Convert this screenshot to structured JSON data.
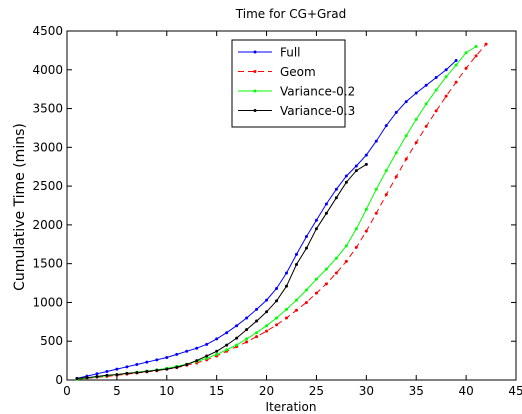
{
  "chart_data": {
    "type": "line",
    "title": "Time for CG+Grad",
    "xlabel": "Iteration",
    "ylabel": "Cumulative Time (mins)",
    "xlim": [
      0,
      45
    ],
    "ylim": [
      0,
      4500
    ],
    "xticks": [
      0,
      5,
      10,
      15,
      20,
      25,
      30,
      35,
      40,
      45
    ],
    "yticks": [
      0,
      500,
      1000,
      1500,
      2000,
      2500,
      3000,
      3500,
      4000,
      4500
    ],
    "grid": false,
    "legend_position": "top-center",
    "series": [
      {
        "name": "Full",
        "color": "#0000ff",
        "linestyle": "solid",
        "marker": "dot",
        "x": [
          1,
          2,
          3,
          4,
          5,
          6,
          7,
          8,
          9,
          10,
          11,
          12,
          13,
          14,
          15,
          16,
          17,
          18,
          19,
          20,
          21,
          22,
          23,
          24,
          25,
          26,
          27,
          28,
          29,
          30,
          31,
          32,
          33,
          34,
          35,
          36,
          37,
          38,
          39
        ],
        "y": [
          20,
          50,
          80,
          110,
          140,
          170,
          200,
          230,
          260,
          290,
          330,
          370,
          410,
          460,
          530,
          610,
          700,
          800,
          910,
          1030,
          1180,
          1380,
          1620,
          1850,
          2060,
          2270,
          2460,
          2630,
          2760,
          2900,
          3080,
          3280,
          3450,
          3590,
          3700,
          3800,
          3900,
          4000,
          4120
        ]
      },
      {
        "name": "Geom",
        "color": "#ff0000",
        "linestyle": "dashed",
        "marker": "dot",
        "x": [
          1,
          2,
          3,
          4,
          5,
          6,
          7,
          8,
          9,
          10,
          11,
          12,
          13,
          14,
          15,
          16,
          17,
          18,
          19,
          20,
          21,
          22,
          23,
          24,
          25,
          26,
          27,
          28,
          29,
          30,
          31,
          32,
          33,
          34,
          35,
          36,
          37,
          38,
          39,
          40,
          41,
          42
        ],
        "y": [
          10,
          20,
          35,
          45,
          60,
          75,
          90,
          105,
          120,
          140,
          160,
          190,
          220,
          260,
          310,
          370,
          430,
          490,
          560,
          630,
          710,
          800,
          900,
          1000,
          1120,
          1240,
          1380,
          1530,
          1710,
          1920,
          2150,
          2390,
          2620,
          2850,
          3060,
          3270,
          3470,
          3660,
          3840,
          4020,
          4180,
          4330
        ]
      },
      {
        "name": "Variance-0.2",
        "color": "#00ff00",
        "linestyle": "solid",
        "marker": "dot",
        "x": [
          1,
          2,
          3,
          4,
          5,
          6,
          7,
          8,
          9,
          10,
          11,
          12,
          13,
          14,
          15,
          16,
          17,
          18,
          19,
          20,
          21,
          22,
          23,
          24,
          25,
          26,
          27,
          28,
          29,
          30,
          31,
          32,
          33,
          34,
          35,
          36,
          37,
          38,
          39,
          40,
          41
        ],
        "y": [
          10,
          25,
          40,
          55,
          70,
          85,
          100,
          115,
          130,
          150,
          175,
          205,
          240,
          280,
          330,
          390,
          450,
          530,
          610,
          700,
          800,
          910,
          1030,
          1160,
          1300,
          1430,
          1570,
          1730,
          1950,
          2200,
          2460,
          2700,
          2930,
          3150,
          3360,
          3560,
          3740,
          3910,
          4060,
          4220,
          4300
        ]
      },
      {
        "name": "Variance-0.3",
        "color": "#000000",
        "linestyle": "solid",
        "marker": "dot",
        "x": [
          1,
          2,
          3,
          4,
          5,
          6,
          7,
          8,
          9,
          10,
          11,
          12,
          13,
          14,
          15,
          16,
          17,
          18,
          19,
          20,
          21,
          22,
          23,
          24,
          25,
          26,
          27,
          28,
          29,
          30
        ],
        "y": [
          20,
          30,
          45,
          60,
          70,
          85,
          95,
          110,
          125,
          140,
          165,
          200,
          250,
          310,
          370,
          450,
          540,
          650,
          760,
          880,
          1020,
          1210,
          1490,
          1700,
          1950,
          2150,
          2350,
          2550,
          2700,
          2780
        ]
      }
    ]
  }
}
